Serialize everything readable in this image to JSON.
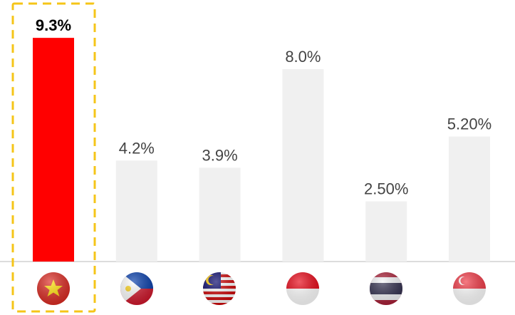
{
  "chart_data": {
    "type": "bar",
    "categories": [
      null,
      null,
      null,
      null,
      null,
      null
    ],
    "values": [
      9.3,
      4.2,
      3.9,
      8.0,
      2.5,
      5.2
    ],
    "value_labels": [
      "9.3%",
      "4.2%",
      "3.9%",
      "8.0%",
      "2.50%",
      "5.20%"
    ],
    "colors": [
      "#ff0000",
      "#f0f0f0",
      "#f0f0f0",
      "#f0f0f0",
      "#f0f0f0",
      "#f0f0f0"
    ],
    "highlight": 0
  }
}
